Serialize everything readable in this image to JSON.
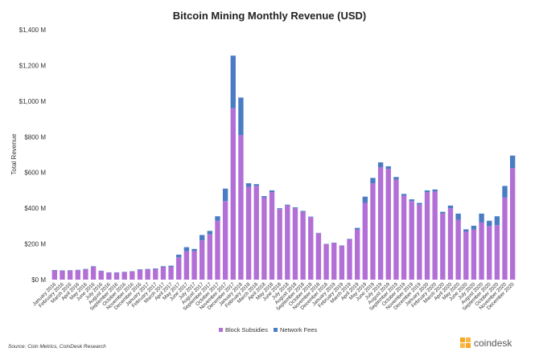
{
  "chart_data": {
    "type": "bar",
    "stacked": true,
    "title": "Bitcoin Mining Monthly Revenue (USD)",
    "ylabel": "Total Revenue",
    "xlabel": "",
    "ylim": [
      0,
      1400
    ],
    "yticks": [
      0,
      200,
      400,
      600,
      800,
      1000,
      1200,
      1400
    ],
    "ytick_labels": [
      "$0 M",
      "$200 M",
      "$400 M",
      "$600 M",
      "$800 M",
      "$1,000 M",
      "$1,200 M",
      "$1,400 M"
    ],
    "grid": false,
    "legend_position": "bottom",
    "categories": [
      "January 2016",
      "February 2016",
      "March 2016",
      "April 2016",
      "May 2016",
      "June 2016",
      "July 2016",
      "August 2016",
      "September 2016",
      "October 2016",
      "November 2016",
      "December 2016",
      "January 2017",
      "February 2017",
      "March 2017",
      "April 2017",
      "May 2017",
      "June 2017",
      "July 2017",
      "August 2017",
      "September 2017",
      "October 2017",
      "November 2017",
      "December 2017",
      "January 2018",
      "February 2018",
      "March 2018",
      "April 2018",
      "May 2018",
      "June 2018",
      "July 2018",
      "August 2018",
      "September 2018",
      "October 2018",
      "November 2018",
      "December 2018",
      "January 2019",
      "February 2019",
      "March 2019",
      "April 2019",
      "May 2019",
      "June 2019",
      "July 2019",
      "August 2019",
      "September 2019",
      "October 2019",
      "November 2019",
      "December 2019",
      "January 2020",
      "February 2020",
      "March 2020",
      "April 2020",
      "May 2020",
      "June 2020",
      "July 2020",
      "August 2020",
      "September 2020",
      "October 2020",
      "November 2020",
      "December 2020"
    ],
    "series": [
      {
        "name": "Block Subsidies",
        "color": "#b26fd6",
        "values": [
          52,
          50,
          51,
          53,
          57,
          72,
          48,
          39,
          39,
          42,
          45,
          55,
          57,
          60,
          70,
          72,
          125,
          160,
          160,
          220,
          255,
          330,
          440,
          960,
          810,
          520,
          525,
          460,
          490,
          395,
          415,
          400,
          380,
          350,
          260,
          198,
          205,
          190,
          225,
          280,
          430,
          540,
          630,
          620,
          560,
          470,
          440,
          420,
          490,
          495,
          370,
          400,
          335,
          270,
          280,
          320,
          300,
          305,
          460,
          625
        ]
      },
      {
        "name": "Network Fees",
        "color": "#4a7cc4",
        "values": [
          2,
          2,
          2,
          2,
          3,
          3,
          2,
          2,
          2,
          2,
          2,
          3,
          3,
          3,
          5,
          6,
          15,
          22,
          12,
          30,
          18,
          25,
          70,
          295,
          210,
          20,
          10,
          8,
          10,
          5,
          5,
          5,
          5,
          3,
          2,
          2,
          2,
          2,
          3,
          10,
          35,
          30,
          27,
          15,
          15,
          10,
          10,
          10,
          10,
          10,
          10,
          15,
          35,
          12,
          22,
          50,
          30,
          50,
          65,
          70
        ]
      }
    ]
  },
  "source_text": "Source: Coin Metrics, CoinDesk Research",
  "brand": {
    "name": "coindesk",
    "color": "#f5a623"
  }
}
